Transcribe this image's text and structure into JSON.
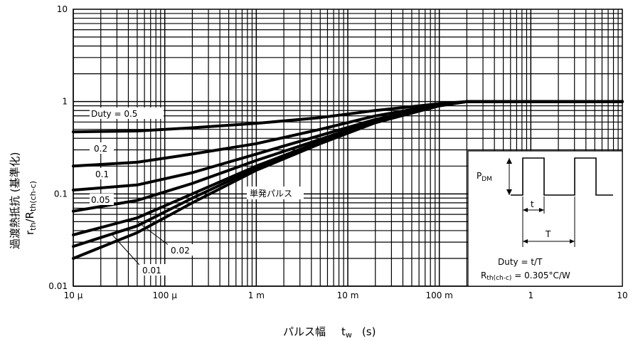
{
  "chart_data": {
    "type": "line",
    "xscale": "log",
    "yscale": "log",
    "xlim": [
      1e-05,
      10
    ],
    "ylim": [
      0.01,
      10
    ],
    "grid": true,
    "xlabel": "パルス幅",
    "xlabel_symbol": "t",
    "xlabel_sub": "w",
    "xlabel_unit": "(s)",
    "ylabel_line1": "過渡熱抵抗 (基準化)",
    "ylabel_r": "r",
    "ylabel_r_sub": "th",
    "ylabel_R": "/R",
    "ylabel_R_sub": "th(ch-c)",
    "x_ticks": [
      {
        "value": 1e-05,
        "label": "10 μ"
      },
      {
        "value": 0.0001,
        "label": "100 μ"
      },
      {
        "value": 0.001,
        "label": "1 m"
      },
      {
        "value": 0.01,
        "label": "10 m"
      },
      {
        "value": 0.1,
        "label": "100 m"
      },
      {
        "value": 1,
        "label": "1"
      },
      {
        "value": 10,
        "label": "10"
      }
    ],
    "y_ticks": [
      {
        "value": 0.01,
        "label": "0.01"
      },
      {
        "value": 0.1,
        "label": "0.1"
      },
      {
        "value": 1,
        "label": "1"
      },
      {
        "value": 10,
        "label": "10"
      }
    ],
    "series": [
      {
        "name": "Duty = 0.5",
        "x": [
          1e-05,
          5e-05,
          0.0002,
          0.001,
          0.005,
          0.02,
          0.1,
          0.2,
          10
        ],
        "y": [
          0.47,
          0.48,
          0.52,
          0.58,
          0.67,
          0.8,
          0.95,
          1.0,
          1.0
        ]
      },
      {
        "name": "0.2",
        "x": [
          1e-05,
          5e-05,
          0.0002,
          0.001,
          0.005,
          0.02,
          0.1,
          0.2,
          10
        ],
        "y": [
          0.2,
          0.22,
          0.27,
          0.35,
          0.5,
          0.7,
          0.93,
          1.0,
          1.0
        ]
      },
      {
        "name": "0.1",
        "x": [
          1e-05,
          5e-05,
          0.0002,
          0.001,
          0.005,
          0.02,
          0.1,
          0.2,
          10
        ],
        "y": [
          0.11,
          0.125,
          0.17,
          0.27,
          0.43,
          0.64,
          0.92,
          1.0,
          1.0
        ]
      },
      {
        "name": "0.05",
        "x": [
          1e-05,
          5e-05,
          0.0002,
          0.001,
          0.005,
          0.02,
          0.1,
          0.2,
          10
        ],
        "y": [
          0.065,
          0.085,
          0.13,
          0.23,
          0.39,
          0.62,
          0.91,
          1.0,
          1.0
        ]
      },
      {
        "name": "0.02",
        "x": [
          1e-05,
          5e-05,
          0.0002,
          0.001,
          0.005,
          0.02,
          0.1,
          0.2,
          10
        ],
        "y": [
          0.036,
          0.055,
          0.1,
          0.2,
          0.37,
          0.6,
          0.9,
          1.0,
          1.0
        ]
      },
      {
        "name": "0.01",
        "x": [
          1e-05,
          5e-05,
          0.0002,
          0.001,
          0.005,
          0.02,
          0.1,
          0.2,
          10
        ],
        "y": [
          0.027,
          0.045,
          0.09,
          0.19,
          0.36,
          0.6,
          0.9,
          1.0,
          1.0
        ]
      },
      {
        "name": "単発パルス",
        "x": [
          1e-05,
          5e-05,
          0.0002,
          0.001,
          0.005,
          0.02,
          0.1,
          0.2,
          10
        ],
        "y": [
          0.02,
          0.038,
          0.08,
          0.18,
          0.35,
          0.59,
          0.9,
          1.0,
          1.0
        ]
      }
    ],
    "annotations": {
      "duty_05": "Duty = 0.5",
      "duty_02": "0.2",
      "duty_01": "0.1",
      "duty_005": "0.05",
      "duty_002": "0.02",
      "duty_001": "0.01",
      "single_pulse": "単発パルス"
    },
    "inset": {
      "pdm_label": "P",
      "pdm_sub": "DM",
      "t_label": "t",
      "T_label": "T",
      "duty_formula": "Duty = t/T",
      "rth_label": "R",
      "rth_sub": "th(ch-c)",
      "rth_value": " = 0.305°C/W"
    }
  }
}
